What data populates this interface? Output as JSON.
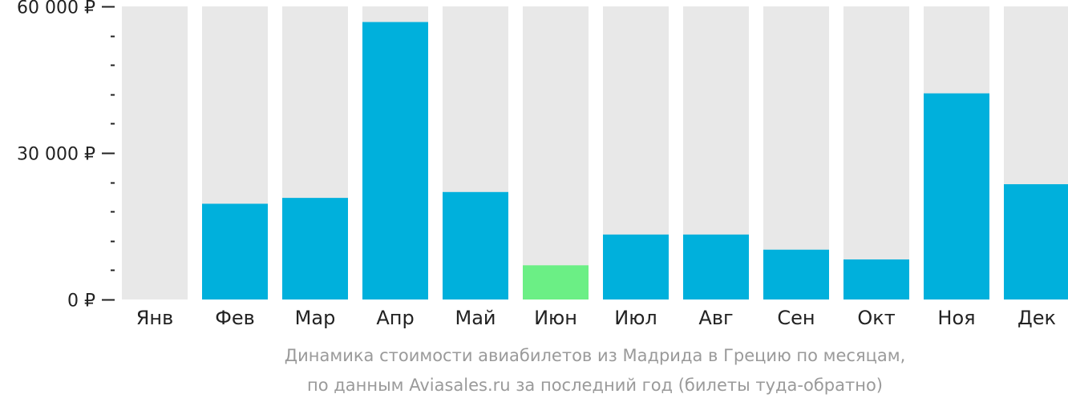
{
  "chart_data": {
    "type": "bar",
    "categories": [
      "Янв",
      "Фев",
      "Мар",
      "Апр",
      "Май",
      "Июн",
      "Июл",
      "Авг",
      "Сен",
      "Окт",
      "Ноя",
      "Дек"
    ],
    "values": [
      null,
      19600,
      20800,
      56800,
      22000,
      7000,
      13300,
      13300,
      10200,
      8200,
      42200,
      23600
    ],
    "highlight_index": 5,
    "ylim": [
      0,
      60000
    ],
    "y_ticks": [
      {
        "value": 0,
        "label": "0 ₽"
      },
      {
        "value": 30000,
        "label": "30 000 ₽"
      },
      {
        "value": 60000,
        "label": "60 000 ₽"
      }
    ],
    "minor_tick_step": 6000,
    "colors": {
      "bar": "#00b0dc",
      "highlight": "#6bef85",
      "track": "#e8e8e8",
      "axis": "#222222"
    },
    "caption": {
      "line1": "Динамика стоимости авиабилетов из Мадрида в Грецию по месяцам,",
      "line2": "по данным Aviasales.ru за последний год (билеты туда-обратно)"
    }
  }
}
